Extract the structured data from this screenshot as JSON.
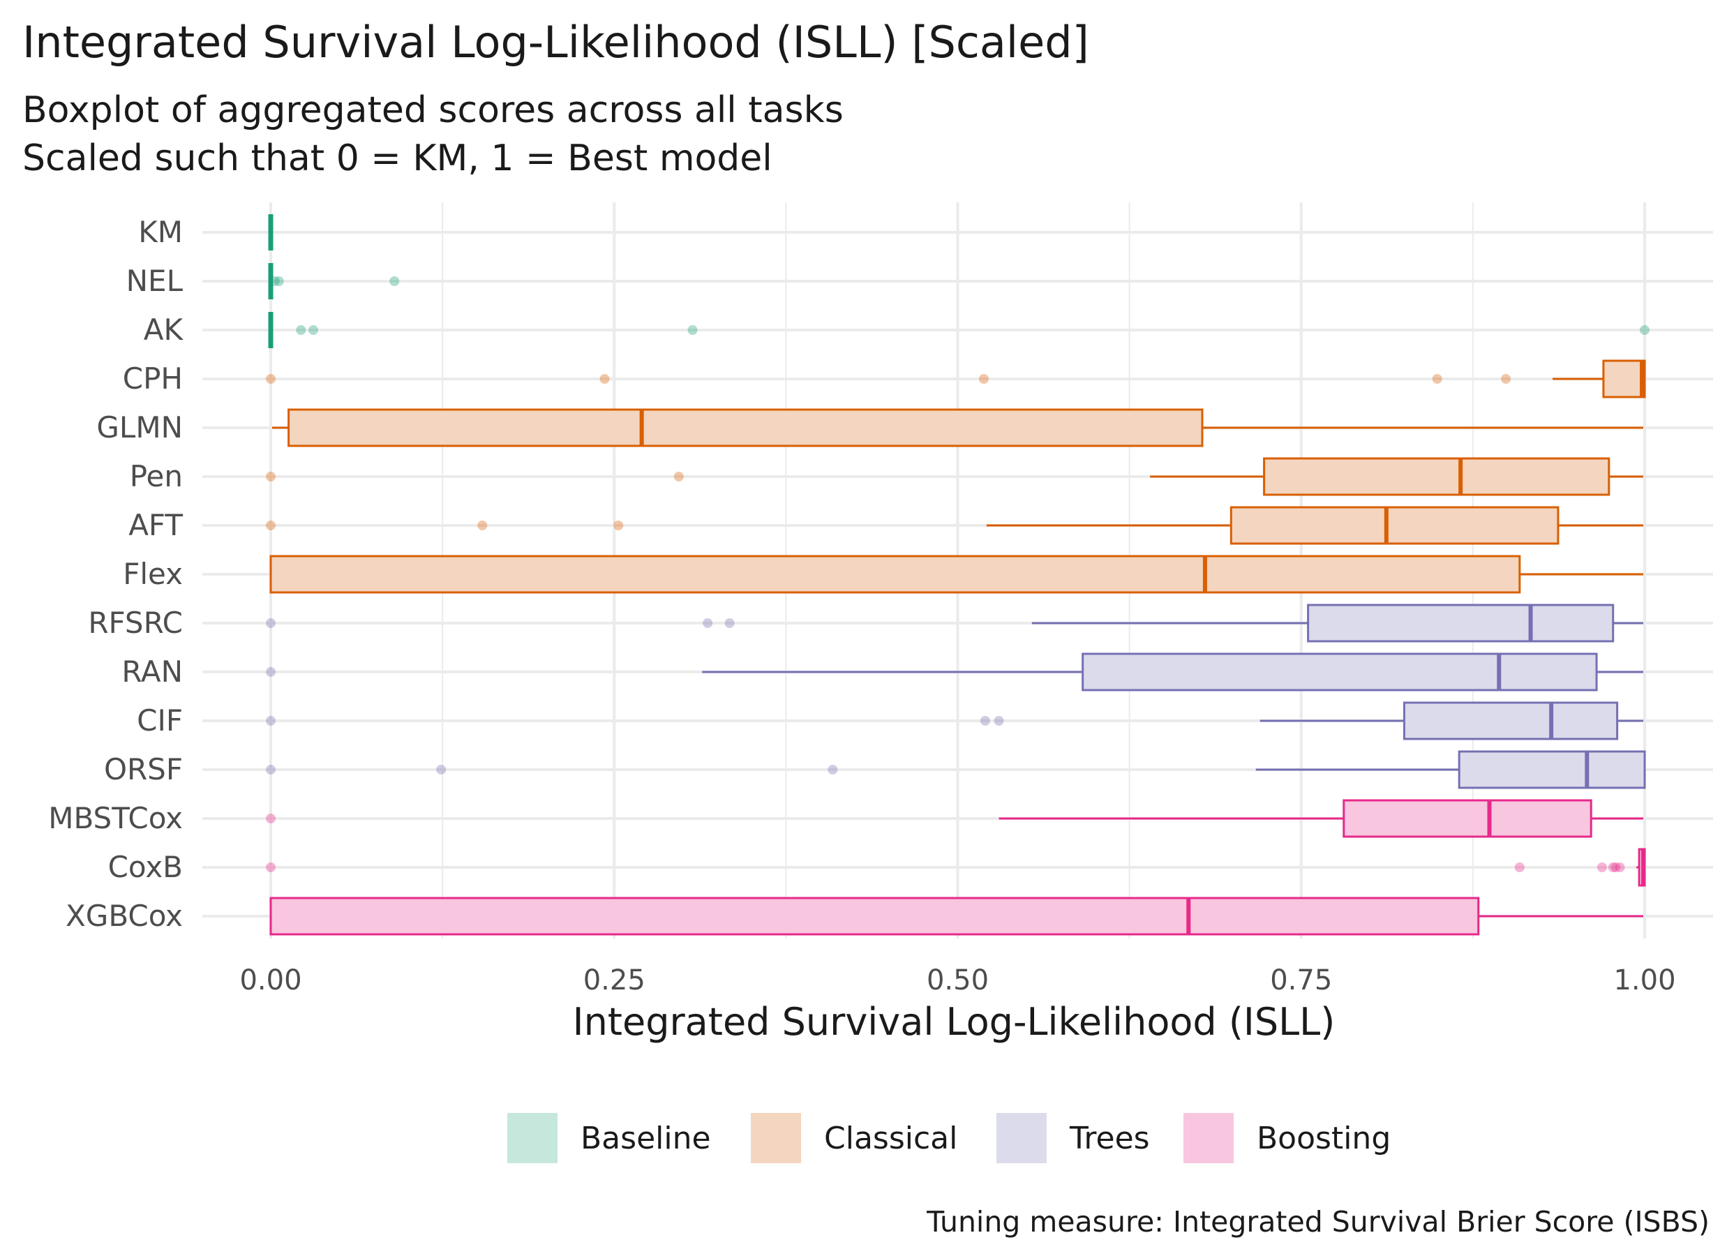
{
  "chart_data": {
    "type": "boxplot",
    "orientation": "horizontal",
    "title": "Integrated Survival Log-Likelihood (ISLL) [Scaled]",
    "subtitle_lines": [
      "Boxplot of aggregated scores across all tasks",
      "Scaled such that 0 = KM, 1 = Best model"
    ],
    "xlabel": "Integrated Survival Log-Likelihood (ISLL)",
    "ylabel": "",
    "xlim": [
      -0.05,
      1.05
    ],
    "x_ticks": [
      0,
      0.25,
      0.5,
      0.75,
      1.0
    ],
    "x_tick_labels": [
      "0.00",
      "0.25",
      "0.50",
      "0.75",
      "1.00"
    ],
    "grid": true,
    "legend_position": "bottom",
    "caption": "Tuning measure: Integrated Survival Brier Score (ISBS)",
    "groups": [
      {
        "name": "Baseline",
        "color": "#1b9e77",
        "fill": "#c6e7dc"
      },
      {
        "name": "Classical",
        "color": "#d95f02",
        "fill": "#f4d5bf"
      },
      {
        "name": "Trees",
        "color": "#7570b3",
        "fill": "#dcdbeb"
      },
      {
        "name": "Boosting",
        "color": "#e7298a",
        "fill": "#f8c6df"
      }
    ],
    "series": [
      {
        "name": "KM",
        "group": "Baseline",
        "whisker_low": 0,
        "q1": 0,
        "median": 0,
        "q3": 0,
        "whisker_high": 0,
        "outliers": []
      },
      {
        "name": "NEL",
        "group": "Baseline",
        "whisker_low": 0,
        "q1": 0,
        "median": 0,
        "q3": 0,
        "whisker_high": 0,
        "outliers": [
          0.003,
          0.006,
          0.09
        ]
      },
      {
        "name": "AK",
        "group": "Baseline",
        "whisker_low": 0,
        "q1": 0,
        "median": 0,
        "q3": 0,
        "whisker_high": 0,
        "outliers": [
          0.022,
          0.031,
          0.307,
          1.0
        ]
      },
      {
        "name": "CPH",
        "group": "Classical",
        "whisker_low": 0.933,
        "q1": 0.97,
        "median": 0.998,
        "q3": 1.0,
        "whisker_high": 1.0,
        "outliers": [
          0,
          0.243,
          0.519,
          0.849,
          0.899
        ]
      },
      {
        "name": "GLMN",
        "group": "Classical",
        "whisker_low": 0.001,
        "q1": 0.013,
        "median": 0.27,
        "q3": 0.678,
        "whisker_high": 0.999,
        "outliers": []
      },
      {
        "name": "Pen",
        "group": "Classical",
        "whisker_low": 0.64,
        "q1": 0.723,
        "median": 0.866,
        "q3": 0.974,
        "whisker_high": 0.999,
        "outliers": [
          0,
          0.297
        ]
      },
      {
        "name": "AFT",
        "group": "Classical",
        "whisker_low": 0.521,
        "q1": 0.699,
        "median": 0.812,
        "q3": 0.937,
        "whisker_high": 0.999,
        "outliers": [
          0,
          0.154,
          0.253
        ]
      },
      {
        "name": "Flex",
        "group": "Classical",
        "whisker_low": 0,
        "q1": 0,
        "median": 0.68,
        "q3": 0.909,
        "whisker_high": 0.999,
        "outliers": []
      },
      {
        "name": "RFSRC",
        "group": "Trees",
        "whisker_low": 0.554,
        "q1": 0.755,
        "median": 0.917,
        "q3": 0.977,
        "whisker_high": 0.999,
        "outliers": [
          0,
          0.318,
          0.334
        ]
      },
      {
        "name": "RAN",
        "group": "Trees",
        "whisker_low": 0.314,
        "q1": 0.591,
        "median": 0.894,
        "q3": 0.965,
        "whisker_high": 0.999,
        "outliers": [
          0
        ]
      },
      {
        "name": "CIF",
        "group": "Trees",
        "whisker_low": 0.72,
        "q1": 0.825,
        "median": 0.932,
        "q3": 0.98,
        "whisker_high": 0.999,
        "outliers": [
          0,
          0.52,
          0.53
        ]
      },
      {
        "name": "ORSF",
        "group": "Trees",
        "whisker_low": 0.717,
        "q1": 0.865,
        "median": 0.958,
        "q3": 1.0,
        "whisker_high": 1.0,
        "outliers": [
          0,
          0.124,
          0.409
        ]
      },
      {
        "name": "MBSTCox",
        "group": "Boosting",
        "whisker_low": 0.53,
        "q1": 0.781,
        "median": 0.887,
        "q3": 0.961,
        "whisker_high": 0.999,
        "outliers": [
          0
        ]
      },
      {
        "name": "CoxB",
        "group": "Boosting",
        "whisker_low": 0.994,
        "q1": 0.996,
        "median": 0.999,
        "q3": 1.0,
        "whisker_high": 1.0,
        "outliers": [
          0,
          0.909,
          0.969,
          0.977,
          0.979,
          0.982
        ]
      },
      {
        "name": "XGBCox",
        "group": "Boosting",
        "whisker_low": 0,
        "q1": 0,
        "median": 0.668,
        "q3": 0.879,
        "whisker_high": 0.999,
        "outliers": []
      }
    ]
  }
}
